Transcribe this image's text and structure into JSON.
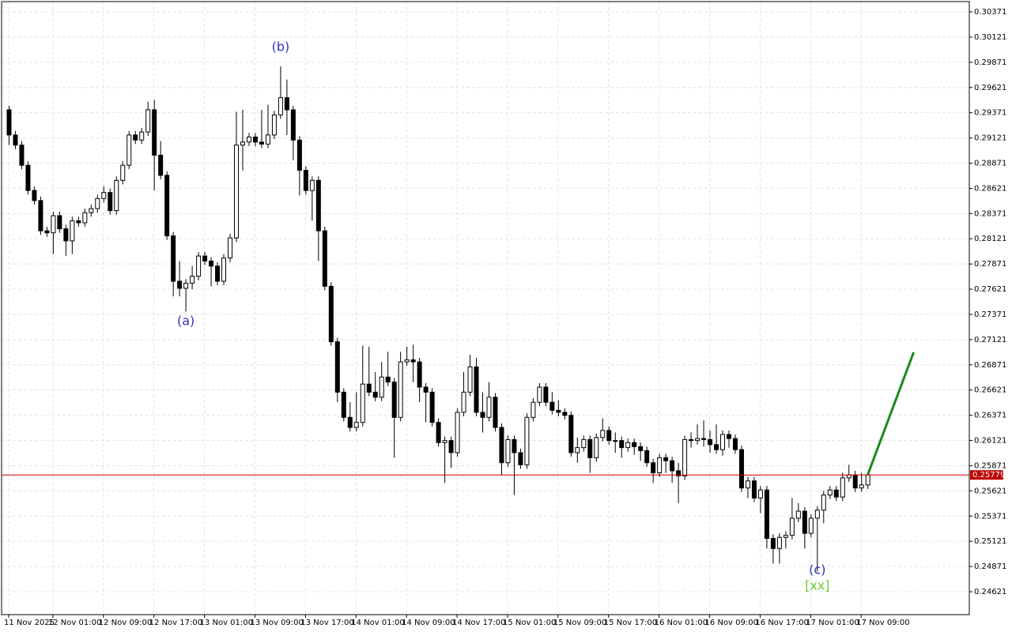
{
  "chart_data": {
    "type": "candlestick",
    "grid": true,
    "up_color": "#ffffff",
    "down_color": "#000000",
    "xlim": [
      -1.125,
      152.125
    ],
    "ylim": [
      0.24394,
      0.30473
    ],
    "xticks": [
      {
        "value": 0,
        "label": "11 Nov 2025"
      },
      {
        "value": 7,
        "label": "12 Nov 01:00"
      },
      {
        "value": 15,
        "label": "12 Nov 09:00"
      },
      {
        "value": 23,
        "label": "12 Nov 17:00"
      },
      {
        "value": 31,
        "label": "13 Nov 01:00"
      },
      {
        "value": 39,
        "label": "13 Nov 09:00"
      },
      {
        "value": 47,
        "label": "13 Nov 17:00"
      },
      {
        "value": 55,
        "label": "14 Nov 01:00"
      },
      {
        "value": 63,
        "label": "14 Nov 09:00"
      },
      {
        "value": 71,
        "label": "14 Nov 17:00"
      },
      {
        "value": 79,
        "label": "15 Nov 01:00"
      },
      {
        "value": 87,
        "label": "15 Nov 09:00"
      },
      {
        "value": 95,
        "label": "15 Nov 17:00"
      },
      {
        "value": 103,
        "label": "16 Nov 01:00"
      },
      {
        "value": 111,
        "label": "16 Nov 09:00"
      },
      {
        "value": 119,
        "label": "16 Nov 17:00"
      },
      {
        "value": 127,
        "label": "17 Nov 01:00"
      },
      {
        "value": 135,
        "label": "17 Nov 09:00"
      }
    ],
    "yticks": [
      0.30371,
      0.30121,
      0.29871,
      0.29621,
      0.29371,
      0.29121,
      0.28871,
      0.28621,
      0.28371,
      0.28121,
      0.27871,
      0.27621,
      0.27371,
      0.27121,
      0.26871,
      0.26621,
      0.26371,
      0.26121,
      0.25871,
      0.25621,
      0.25371,
      0.25121,
      0.24871,
      0.24621
    ],
    "open": [
      0.294,
      0.2915,
      0.2905,
      0.2885,
      0.286,
      0.285,
      0.282,
      0.2818,
      0.2835,
      0.2822,
      0.281,
      0.283,
      0.2828,
      0.2838,
      0.2842,
      0.2852,
      0.2858,
      0.284,
      0.287,
      0.2885,
      0.2915,
      0.291,
      0.2918,
      0.294,
      0.2895,
      0.2875,
      0.2815,
      0.277,
      0.2763,
      0.2768,
      0.2775,
      0.2795,
      0.279,
      0.2785,
      0.277,
      0.2793,
      0.2813,
      0.2905,
      0.2908,
      0.2913,
      0.2908,
      0.2906,
      0.2915,
      0.2935,
      0.2952,
      0.294,
      0.291,
      0.288,
      0.286,
      0.287,
      0.282,
      0.2765,
      0.271,
      0.266,
      0.2635,
      0.2625,
      0.263,
      0.2668,
      0.266,
      0.2655,
      0.2675,
      0.267,
      0.2635,
      0.269,
      0.2692,
      0.269,
      0.2665,
      0.266,
      0.263,
      0.261,
      0.2612,
      0.26,
      0.264,
      0.266,
      0.2685,
      0.264,
      0.2635,
      0.2655,
      0.2625,
      0.259,
      0.2613,
      0.26,
      0.2588,
      0.2635,
      0.265,
      0.2665,
      0.265,
      0.2642,
      0.264,
      0.2637,
      0.26,
      0.2605,
      0.2613,
      0.2595,
      0.2615,
      0.2622,
      0.2612,
      0.2612,
      0.2605,
      0.261,
      0.2606,
      0.2602,
      0.259,
      0.258,
      0.2595,
      0.2592,
      0.2582,
      0.2577,
      0.2613,
      0.2612,
      0.2614,
      0.2613,
      0.2608,
      0.2603,
      0.2618,
      0.2614,
      0.2603,
      0.2565,
      0.2572,
      0.2555,
      0.2563,
      0.2515,
      0.2505,
      0.2516,
      0.2518,
      0.2535,
      0.2542,
      0.252,
      0.2535,
      0.2543,
      0.2558,
      0.2563,
      0.2556,
      0.2575,
      0.2578,
      0.2565,
      0.2568
    ],
    "high": [
      0.2944,
      0.2919,
      0.2909,
      0.2889,
      0.2864,
      0.2854,
      0.2824,
      0.2839,
      0.2839,
      0.2826,
      0.2834,
      0.2834,
      0.2842,
      0.2846,
      0.2856,
      0.2864,
      0.2862,
      0.2874,
      0.2889,
      0.2919,
      0.2919,
      0.2922,
      0.2948,
      0.295,
      0.2909,
      0.2879,
      0.2819,
      0.279,
      0.2772,
      0.2785,
      0.2799,
      0.2799,
      0.2794,
      0.2789,
      0.2797,
      0.2817,
      0.2938,
      0.294,
      0.2917,
      0.2917,
      0.294,
      0.2945,
      0.2939,
      0.2983,
      0.297,
      0.2944,
      0.2914,
      0.2884,
      0.2874,
      0.2874,
      0.2824,
      0.2769,
      0.2714,
      0.2664,
      0.265,
      0.266,
      0.2706,
      0.2705,
      0.268,
      0.269,
      0.27,
      0.2674,
      0.27,
      0.2705,
      0.2707,
      0.2694,
      0.2669,
      0.2664,
      0.2634,
      0.2616,
      0.2616,
      0.2644,
      0.268,
      0.2697,
      0.2694,
      0.266,
      0.267,
      0.2659,
      0.2629,
      0.2617,
      0.2617,
      0.2604,
      0.2639,
      0.2654,
      0.2669,
      0.2669,
      0.266,
      0.2652,
      0.2644,
      0.2641,
      0.2615,
      0.2617,
      0.2617,
      0.2619,
      0.2634,
      0.2626,
      0.262,
      0.2616,
      0.2614,
      0.2614,
      0.261,
      0.2606,
      0.2594,
      0.2599,
      0.2599,
      0.2596,
      0.259,
      0.2617,
      0.262,
      0.2628,
      0.2632,
      0.2622,
      0.2628,
      0.2622,
      0.2622,
      0.2618,
      0.2607,
      0.2576,
      0.2576,
      0.2567,
      0.2567,
      0.2519,
      0.252,
      0.2522,
      0.2555,
      0.255,
      0.2546,
      0.2539,
      0.2547,
      0.2562,
      0.2567,
      0.2567,
      0.258,
      0.2588,
      0.2582,
      0.258,
      0.258
    ],
    "low": [
      0.2905,
      0.2901,
      0.2881,
      0.2856,
      0.2846,
      0.2816,
      0.2814,
      0.2797,
      0.2818,
      0.2795,
      0.2797,
      0.2824,
      0.2824,
      0.2834,
      0.2838,
      0.2848,
      0.2836,
      0.2836,
      0.2866,
      0.2881,
      0.2906,
      0.2906,
      0.2914,
      0.286,
      0.2871,
      0.2811,
      0.2755,
      0.2755,
      0.274,
      0.2762,
      0.2771,
      0.2786,
      0.2765,
      0.2766,
      0.2766,
      0.2789,
      0.2809,
      0.288,
      0.2904,
      0.2904,
      0.2902,
      0.2902,
      0.2911,
      0.2931,
      0.2915,
      0.289,
      0.2855,
      0.2856,
      0.283,
      0.279,
      0.2761,
      0.2706,
      0.265,
      0.2631,
      0.2621,
      0.2621,
      0.2626,
      0.2656,
      0.2651,
      0.2651,
      0.2666,
      0.2595,
      0.2631,
      0.2686,
      0.267,
      0.265,
      0.263,
      0.2626,
      0.2606,
      0.257,
      0.2585,
      0.2596,
      0.2636,
      0.2656,
      0.2636,
      0.262,
      0.2631,
      0.2621,
      0.2578,
      0.2586,
      0.2558,
      0.2584,
      0.2584,
      0.2631,
      0.2646,
      0.2646,
      0.2638,
      0.2636,
      0.2633,
      0.2596,
      0.259,
      0.2601,
      0.258,
      0.2591,
      0.2611,
      0.2608,
      0.26,
      0.2595,
      0.2601,
      0.2598,
      0.2592,
      0.2586,
      0.257,
      0.2576,
      0.258,
      0.257,
      0.255,
      0.2573,
      0.2605,
      0.2608,
      0.2606,
      0.26,
      0.2599,
      0.2597,
      0.2605,
      0.2599,
      0.2561,
      0.2555,
      0.2551,
      0.254,
      0.2505,
      0.249,
      0.249,
      0.2505,
      0.2514,
      0.2531,
      0.2505,
      0.2516,
      0.2482,
      0.253,
      0.2554,
      0.2552,
      0.2552,
      0.2571,
      0.2561,
      0.2561,
      0.2564
    ],
    "close": [
      0.2915,
      0.2905,
      0.2885,
      0.286,
      0.285,
      0.282,
      0.2818,
      0.2835,
      0.2822,
      0.281,
      0.283,
      0.2828,
      0.2838,
      0.2842,
      0.2852,
      0.2858,
      0.284,
      0.287,
      0.2885,
      0.2915,
      0.291,
      0.2918,
      0.294,
      0.2895,
      0.2875,
      0.2815,
      0.277,
      0.2763,
      0.2768,
      0.2775,
      0.2795,
      0.279,
      0.2785,
      0.277,
      0.2793,
      0.2813,
      0.2905,
      0.2908,
      0.2913,
      0.2908,
      0.2906,
      0.2915,
      0.2935,
      0.2952,
      0.294,
      0.291,
      0.288,
      0.286,
      0.287,
      0.282,
      0.2765,
      0.271,
      0.266,
      0.2635,
      0.2625,
      0.263,
      0.2668,
      0.266,
      0.2655,
      0.2675,
      0.267,
      0.2635,
      0.269,
      0.2692,
      0.269,
      0.2665,
      0.266,
      0.263,
      0.261,
      0.2612,
      0.26,
      0.264,
      0.266,
      0.2685,
      0.264,
      0.2635,
      0.2655,
      0.2625,
      0.259,
      0.2613,
      0.26,
      0.2588,
      0.2635,
      0.265,
      0.2665,
      0.265,
      0.2642,
      0.264,
      0.2637,
      0.26,
      0.2605,
      0.2613,
      0.2595,
      0.2615,
      0.2622,
      0.2612,
      0.2612,
      0.2605,
      0.261,
      0.2606,
      0.2602,
      0.259,
      0.258,
      0.2595,
      0.2592,
      0.2582,
      0.2577,
      0.2613,
      0.2612,
      0.2614,
      0.2613,
      0.2608,
      0.2603,
      0.2618,
      0.2614,
      0.2603,
      0.2565,
      0.2572,
      0.2555,
      0.2563,
      0.2515,
      0.2505,
      0.2516,
      0.2518,
      0.2535,
      0.2542,
      0.252,
      0.2535,
      0.2543,
      0.2558,
      0.2563,
      0.2556,
      0.2575,
      0.2578,
      0.2565,
      0.2568,
      0.2578
    ],
    "current_price": {
      "value": 0.25779,
      "color": "#c00000"
    },
    "projection": {
      "x": [
        136,
        143.25
      ],
      "values": [
        0.25785,
        0.26996
      ],
      "color": "#1a8a1a"
    },
    "annotations": [
      {
        "text": "(a)",
        "x": 28,
        "y": 0.27301,
        "color": "#3030c8"
      },
      {
        "text": "(b)",
        "x": 43,
        "y": 0.30019,
        "color": "#3030c8"
      },
      {
        "text": "(c)",
        "x": 128,
        "y": 0.24832,
        "color": "#3030c8"
      },
      {
        "text": "[xx]",
        "x": 128,
        "y": 0.24676,
        "color": "#66cc33"
      }
    ]
  }
}
